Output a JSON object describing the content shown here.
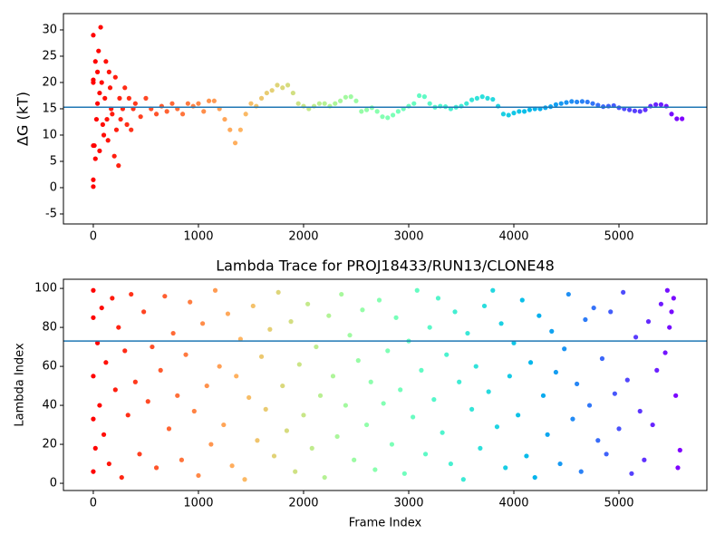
{
  "chart_data": [
    {
      "type": "scatter",
      "ylabel": "ΔG (kT)",
      "colormap": "rainbow_r",
      "hline": 15.3,
      "hline_color": "#1f77b4",
      "xlim": [
        -284,
        5836
      ],
      "xticks": [
        0,
        1000,
        2000,
        3000,
        4000,
        5000
      ],
      "ylim": [
        -6.9,
        33.1
      ],
      "yticks": [
        -5,
        0,
        5,
        10,
        15,
        20,
        25,
        30
      ],
      "x": [
        0,
        0,
        0,
        0,
        0,
        0,
        10,
        20,
        20,
        30,
        40,
        40,
        50,
        60,
        60,
        70,
        80,
        90,
        100,
        110,
        120,
        130,
        140,
        150,
        160,
        170,
        180,
        200,
        210,
        220,
        240,
        250,
        260,
        280,
        300,
        320,
        340,
        360,
        380,
        400,
        450,
        500,
        550,
        600,
        650,
        700,
        750,
        800,
        850,
        900,
        950,
        1000,
        1050,
        1100,
        1150,
        1200,
        1250,
        1300,
        1350,
        1400,
        1450,
        1500,
        1550,
        1600,
        1650,
        1700,
        1750,
        1800,
        1850,
        1900,
        1950,
        2000,
        2050,
        2100,
        2150,
        2200,
        2250,
        2300,
        2350,
        2400,
        2450,
        2500,
        2550,
        2600,
        2650,
        2700,
        2750,
        2800,
        2850,
        2900,
        2950,
        3000,
        3050,
        3100,
        3150,
        3200,
        3250,
        3300,
        3350,
        3400,
        3450,
        3500,
        3550,
        3600,
        3650,
        3700,
        3750,
        3800,
        3850,
        3900,
        3950,
        4000,
        4050,
        4100,
        4150,
        4200,
        4250,
        4300,
        4350,
        4400,
        4450,
        4500,
        4550,
        4600,
        4650,
        4700,
        4750,
        4800,
        4850,
        4900,
        4950,
        5000,
        5050,
        5100,
        5150,
        5200,
        5250,
        5300,
        5350,
        5400,
        5450,
        5500,
        5550,
        5600
      ],
      "y": [
        0.2,
        1.5,
        8,
        20,
        29,
        20.5,
        8,
        24,
        5.5,
        13,
        22,
        16,
        26,
        7,
        18,
        30.5,
        20,
        12,
        10,
        17,
        24,
        13,
        9,
        22,
        19,
        15,
        14,
        6,
        21,
        11,
        4.2,
        17,
        13,
        15,
        19,
        12,
        17,
        11,
        15,
        16,
        13.5,
        17,
        15,
        14,
        15.5,
        14.5,
        16,
        15,
        14,
        16,
        15.5,
        16,
        14.5,
        16.5,
        16.5,
        15,
        13,
        11,
        8.5,
        11,
        14,
        16,
        15.5,
        17,
        18,
        18.5,
        19.5,
        19,
        19.5,
        18,
        16,
        15.5,
        15,
        15.5,
        16,
        16,
        15.5,
        16,
        16.5,
        17.2,
        17.3,
        16.5,
        14.5,
        14.8,
        15.2,
        14.5,
        13.5,
        13.3,
        13.8,
        14.5,
        15,
        15.5,
        16,
        17.5,
        17.3,
        16,
        15.3,
        15.5,
        15.4,
        15,
        15.3,
        15.5,
        16,
        16.7,
        17,
        17.3,
        17,
        16.8,
        15.5,
        14,
        13.8,
        14.2,
        14.5,
        14.5,
        14.8,
        15,
        15,
        15.2,
        15.4,
        15.8,
        16,
        16.2,
        16.4,
        16.3,
        16.4,
        16.3,
        16,
        15.7,
        15.4,
        15.5,
        15.6,
        15.2,
        15,
        14.8,
        14.6,
        14.5,
        14.8,
        15.5,
        15.8,
        15.8,
        15.5,
        14,
        13.1,
        13.1
      ]
    },
    {
      "type": "scatter",
      "title": "Lambda Trace for PROJ18433/RUN13/CLONE48",
      "xlabel": "Frame Index",
      "ylabel": "Lambda Index",
      "colormap": "rainbow_r",
      "hline": 73,
      "hline_color": "#1f77b4",
      "xlim": [
        -284,
        5836
      ],
      "xticks": [
        0,
        1000,
        2000,
        3000,
        4000,
        5000
      ],
      "ylim": [
        -3.7,
        104.7
      ],
      "yticks": [
        0,
        20,
        40,
        60,
        80,
        100
      ],
      "x": [
        0,
        0,
        0,
        0,
        0,
        20,
        40,
        60,
        80,
        100,
        120,
        150,
        180,
        210,
        240,
        270,
        300,
        330,
        360,
        400,
        440,
        480,
        520,
        560,
        600,
        640,
        680,
        720,
        760,
        800,
        840,
        880,
        920,
        960,
        1000,
        1040,
        1080,
        1120,
        1160,
        1200,
        1240,
        1280,
        1320,
        1360,
        1400,
        1440,
        1480,
        1520,
        1560,
        1600,
        1640,
        1680,
        1720,
        1760,
        1800,
        1840,
        1880,
        1920,
        1960,
        2000,
        2040,
        2080,
        2120,
        2160,
        2200,
        2240,
        2280,
        2320,
        2360,
        2400,
        2440,
        2480,
        2520,
        2560,
        2600,
        2640,
        2680,
        2720,
        2760,
        2800,
        2840,
        2880,
        2920,
        2960,
        3000,
        3040,
        3080,
        3120,
        3160,
        3200,
        3240,
        3280,
        3320,
        3360,
        3400,
        3440,
        3480,
        3520,
        3560,
        3600,
        3640,
        3680,
        3720,
        3760,
        3800,
        3840,
        3880,
        3920,
        3960,
        4000,
        4040,
        4080,
        4120,
        4160,
        4200,
        4240,
        4280,
        4320,
        4360,
        4400,
        4440,
        4480,
        4520,
        4560,
        4600,
        4640,
        4680,
        4720,
        4760,
        4800,
        4840,
        4880,
        4920,
        4960,
        5000,
        5040,
        5080,
        5120,
        5160,
        5200,
        5240,
        5280,
        5320,
        5360,
        5400,
        5440,
        5460,
        5480,
        5500,
        5520,
        5540,
        5560,
        5580
      ],
      "y": [
        99,
        6,
        55,
        33,
        85,
        18,
        72,
        40,
        90,
        25,
        62,
        10,
        95,
        48,
        80,
        3,
        68,
        35,
        97,
        52,
        15,
        88,
        42,
        70,
        8,
        58,
        96,
        28,
        77,
        45,
        12,
        66,
        93,
        37,
        4,
        82,
        50,
        20,
        99,
        60,
        30,
        87,
        9,
        55,
        74,
        2,
        44,
        91,
        22,
        65,
        38,
        79,
        14,
        98,
        50,
        27,
        83,
        6,
        61,
        35,
        92,
        18,
        70,
        45,
        3,
        86,
        55,
        24,
        97,
        40,
        76,
        12,
        63,
        89,
        30,
        52,
        7,
        94,
        41,
        68,
        20,
        85,
        48,
        5,
        73,
        34,
        99,
        58,
        15,
        80,
        43,
        95,
        26,
        66,
        10,
        88,
        52,
        2,
        77,
        38,
        60,
        18,
        91,
        47,
        99,
        29,
        82,
        8,
        55,
        72,
        35,
        94,
        14,
        62,
        3,
        86,
        45,
        25,
        78,
        57,
        10,
        69,
        97,
        33,
        51,
        6,
        84,
        40,
        90,
        22,
        64,
        15,
        88,
        46,
        28,
        98,
        53,
        5,
        75,
        37,
        12,
        83,
        30,
        58,
        92,
        67,
        99,
        80,
        88,
        95,
        45,
        8,
        17
      ]
    }
  ]
}
